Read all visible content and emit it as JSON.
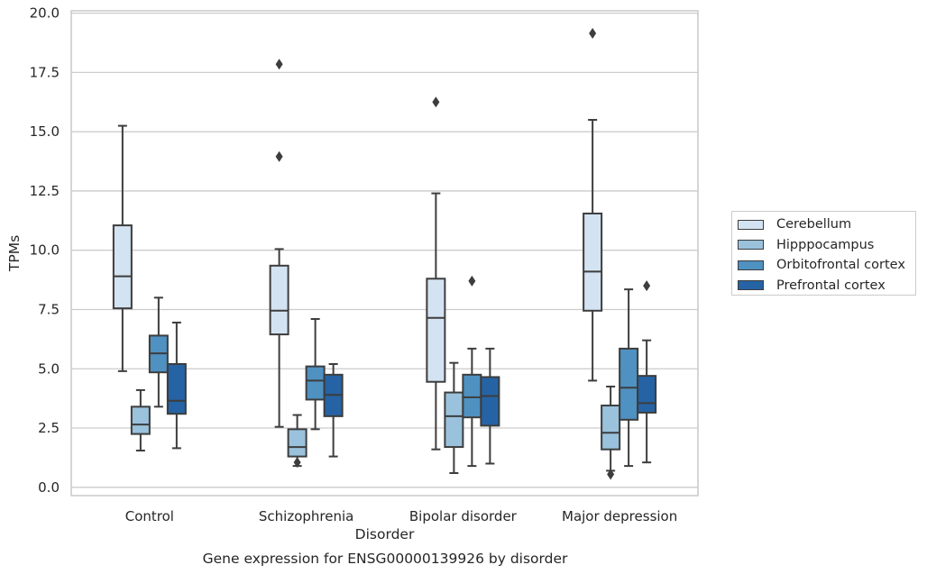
{
  "chart_data": {
    "type": "boxplot",
    "title": "Gene expression for ENSG00000139926 by disorder",
    "xlabel": "Disorder",
    "ylabel": "TPMs",
    "ylim": [
      -0.35,
      20.1
    ],
    "yticks": [
      "0.0",
      "2.5",
      "5.0",
      "7.5",
      "10.0",
      "12.5",
      "15.0",
      "17.5",
      "20.0"
    ],
    "ytick_values": [
      0,
      2.5,
      5,
      7.5,
      10,
      12.5,
      15,
      17.5,
      20
    ],
    "categories": [
      "Control",
      "Schizophrenia",
      "Bipolar disorder",
      "Major depression"
    ],
    "grid": "horizontal",
    "legend_position": "right",
    "series": [
      {
        "name": "Cerebellum",
        "color": "#d4e3f2",
        "boxes": [
          {
            "whisker_low": 4.9,
            "q1": 7.55,
            "median": 8.9,
            "q3": 11.05,
            "whisker_high": 15.25,
            "outliers": []
          },
          {
            "whisker_low": 2.55,
            "q1": 6.45,
            "median": 7.45,
            "q3": 9.35,
            "whisker_high": 10.05,
            "outliers": [
              13.95,
              17.85
            ]
          },
          {
            "whisker_low": 1.6,
            "q1": 4.45,
            "median": 7.15,
            "q3": 8.8,
            "whisker_high": 12.4,
            "outliers": [
              16.25
            ]
          },
          {
            "whisker_low": 4.5,
            "q1": 7.45,
            "median": 9.1,
            "q3": 11.55,
            "whisker_high": 15.5,
            "outliers": [
              19.15
            ]
          }
        ]
      },
      {
        "name": "Hipppocampus",
        "color": "#9ac2dc",
        "boxes": [
          {
            "whisker_low": 1.55,
            "q1": 2.25,
            "median": 2.65,
            "q3": 3.4,
            "whisker_high": 4.1,
            "outliers": []
          },
          {
            "whisker_low": 0.9,
            "q1": 1.3,
            "median": 1.7,
            "q3": 2.45,
            "whisker_high": 3.05,
            "outliers": [
              1.05
            ]
          },
          {
            "whisker_low": 0.6,
            "q1": 1.7,
            "median": 3.0,
            "q3": 4.0,
            "whisker_high": 5.25,
            "outliers": []
          },
          {
            "whisker_low": 0.7,
            "q1": 1.6,
            "median": 2.3,
            "q3": 3.45,
            "whisker_high": 4.25,
            "outliers": [
              0.55
            ]
          }
        ]
      },
      {
        "name": "Orbitofrontal cortex",
        "color": "#4f91c1",
        "boxes": [
          {
            "whisker_low": 3.4,
            "q1": 4.85,
            "median": 5.65,
            "q3": 6.4,
            "whisker_high": 8.0,
            "outliers": []
          },
          {
            "whisker_low": 2.45,
            "q1": 3.7,
            "median": 4.5,
            "q3": 5.1,
            "whisker_high": 7.1,
            "outliers": []
          },
          {
            "whisker_low": 0.9,
            "q1": 2.95,
            "median": 3.8,
            "q3": 4.75,
            "whisker_high": 5.85,
            "outliers": [
              8.7
            ]
          },
          {
            "whisker_low": 0.9,
            "q1": 2.85,
            "median": 4.2,
            "q3": 5.85,
            "whisker_high": 8.35,
            "outliers": []
          }
        ]
      },
      {
        "name": "Prefrontal cortex",
        "color": "#2563a5",
        "boxes": [
          {
            "whisker_low": 1.65,
            "q1": 3.1,
            "median": 3.65,
            "q3": 5.2,
            "whisker_high": 6.95,
            "outliers": []
          },
          {
            "whisker_low": 1.3,
            "q1": 3.0,
            "median": 3.9,
            "q3": 4.75,
            "whisker_high": 5.2,
            "outliers": []
          },
          {
            "whisker_low": 1.0,
            "q1": 2.6,
            "median": 3.85,
            "q3": 4.65,
            "whisker_high": 5.85,
            "outliers": []
          },
          {
            "whisker_low": 1.05,
            "q1": 3.15,
            "median": 3.55,
            "q3": 4.7,
            "whisker_high": 6.2,
            "outliers": [
              8.5
            ]
          }
        ]
      }
    ]
  }
}
